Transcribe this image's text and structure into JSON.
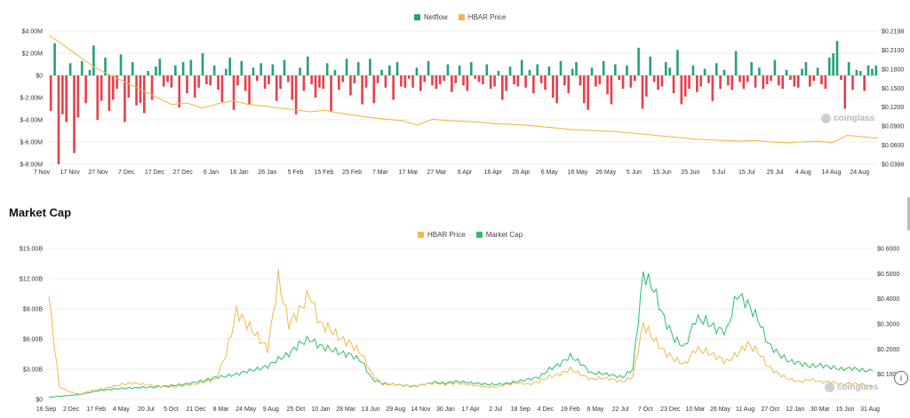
{
  "colors": {
    "netflow_pos": "#26a17b",
    "netflow_neg": "#e8404b",
    "hbar_price": "#f0b94a",
    "market_cap": "#2ebd6a",
    "grid": "#eeeeee"
  },
  "watermark": "coinglass",
  "info_button": "i",
  "chart_data": [
    {
      "type": "bar",
      "title": "",
      "legend": [
        "Netflow",
        "HBAR Price"
      ],
      "legend_position": "top-center",
      "y_left_ticks": [
        "$4.00M",
        "$2.00M",
        "$0",
        "$-2.00M",
        "$-4.00M",
        "$-6.00M",
        "$-8.00M"
      ],
      "y_left_range": [
        -8,
        4
      ],
      "y_right_ticks": [
        "$0.2198",
        "$0.2100",
        "$0.1800",
        "$0.1500",
        "$0.1200",
        "$0.0900",
        "$0.0600",
        "$0.0388"
      ],
      "x_ticks": [
        "7 Nov",
        "17 Nov",
        "27 Nov",
        "7 Dec",
        "17 Dec",
        "27 Dec",
        "6 Jan",
        "16 Jan",
        "26 Jan",
        "5 Feb",
        "15 Feb",
        "25 Feb",
        "7 Mar",
        "17 Mar",
        "27 Mar",
        "6 Apr",
        "16 Apr",
        "26 Apr",
        "6 May",
        "16 May",
        "26 May",
        "5 Jun",
        "15 Jun",
        "25 Jun",
        "5 Jul",
        "15 Jul",
        "25 Jul",
        "4 Aug",
        "14 Aug",
        "24 Aug"
      ],
      "series": [
        {
          "name": "Netflow",
          "type": "bar",
          "unit": "M",
          "values": [
            -3.2,
            2.9,
            -8.0,
            -3.5,
            -4.2,
            1.1,
            -7.0,
            -3.8,
            1.3,
            -2.5,
            0.5,
            2.7,
            -4.0,
            -2.3,
            1.6,
            -3.2,
            -2.2,
            -1.2,
            1.9,
            -4.2,
            -2.0,
            1.2,
            -2.7,
            -2.5,
            -3.4,
            0.4,
            -2.2,
            0.8,
            1.5,
            -1.0,
            -0.6,
            -1.1,
            0.9,
            -2.9,
            1.2,
            -1.6,
            1.4,
            -2.0,
            -1.1,
            2.0,
            -0.8,
            -0.9,
            0.9,
            -1.3,
            -2.4,
            0.6,
            1.6,
            -3.1,
            -0.9,
            1.3,
            -1.4,
            -2.6,
            0.7,
            -0.5,
            1.1,
            -1.2,
            -0.8,
            1.0,
            -2.3,
            -1.2,
            1.4,
            -0.6,
            -2.2,
            -3.5,
            0.7,
            -1.4,
            1.7,
            -0.8,
            -2.0,
            -1.1,
            -1.2,
            1.1,
            -3.3,
            0.5,
            -1.3,
            -0.6,
            1.5,
            -1.8,
            -0.7,
            1.2,
            -2.6,
            -1.1,
            1.5,
            -2.5,
            -0.7,
            0.5,
            -1.1,
            0.9,
            -2.2,
            1.2,
            -1.0,
            -1.1,
            -0.3,
            -1.1,
            0.7,
            -1.4,
            -0.6,
            1.3,
            -0.9,
            -1.2,
            -0.8,
            -0.5,
            1.0,
            -1.5,
            -0.7,
            0.9,
            -0.9,
            -1.4,
            1.2,
            -0.3,
            -0.6,
            -0.8,
            1.0,
            -1.2,
            -1.0,
            0.4,
            -2.2,
            -1.4,
            0.8,
            -0.8,
            -1.0,
            1.4,
            -1.1,
            0.5,
            -1.6,
            1.0,
            -0.7,
            -1.3,
            0.8,
            -2.0,
            -2.5,
            1.3,
            -0.9,
            -1.6,
            0.6,
            1.2,
            -0.9,
            -2.5,
            -3.1,
            0.7,
            -1.0,
            -0.8,
            1.3,
            -1.7,
            -2.6,
            1.0,
            -0.4,
            -1.2,
            0.9,
            -1.1,
            -0.5,
            2.5,
            -3.0,
            -1.9,
            1.7,
            -0.6,
            -1.3,
            -1.0,
            1.2,
            0.7,
            -1.6,
            2.3,
            -2.6,
            -1.9,
            -1.2,
            0.9,
            -1.5,
            -1.0,
            0.6,
            -0.7,
            -2.3,
            1.1,
            -1.2,
            0.5,
            -0.9,
            -1.3,
            2.2,
            -0.6,
            -1.2,
            -0.6,
            1.2,
            -1.1,
            0.7,
            -1.2,
            -0.8,
            -0.5,
            1.4,
            -0.9,
            -1.2,
            0.5,
            -0.4,
            -1.0,
            -1.1,
            0.6,
            1.2,
            -1.0,
            -0.5,
            0.7,
            -0.8,
            -1.2,
            1.6,
            2.0,
            3.1,
            -0.4,
            -3.0,
            1.2,
            -1.3,
            0.5,
            0.4,
            -1.4,
            0.9,
            0.6,
            0.9
          ]
        },
        {
          "name": "HBAR Price",
          "type": "line",
          "axis": "right",
          "values": [
            0.214,
            0.2,
            0.185,
            0.17,
            0.16,
            0.15,
            0.14,
            0.13,
            0.12,
            0.122,
            0.115,
            0.121,
            0.125,
            0.12,
            0.118,
            0.115,
            0.113,
            0.11,
            0.112,
            0.108,
            0.105,
            0.102,
            0.1,
            0.098,
            0.092,
            0.1,
            0.098,
            0.097,
            0.096,
            0.094,
            0.093,
            0.092,
            0.09,
            0.088,
            0.086,
            0.085,
            0.084,
            0.083,
            0.081,
            0.079,
            0.077,
            0.075,
            0.073,
            0.072,
            0.071,
            0.07,
            0.071,
            0.069,
            0.068,
            0.069,
            0.07,
            0.068,
            0.078,
            0.076,
            0.074
          ]
        }
      ]
    },
    {
      "type": "line",
      "title": "Market Cap",
      "legend": [
        "HBAR Price",
        "Market Cap"
      ],
      "legend_position": "top-center",
      "y_left_ticks": [
        "$15.00B",
        "$12.00B",
        "$9.00B",
        "$6.00B",
        "$3.00B",
        "$0"
      ],
      "y_left_range": [
        0,
        15
      ],
      "y_right_ticks": [
        "$0.6000",
        "$0.5000",
        "$0.4000",
        "$0.3000",
        "$0.2000",
        "$0.1000"
      ],
      "y_right_range": [
        0,
        0.6
      ],
      "x_ticks": [
        "16 Sep",
        "2 Dec",
        "17 Feb",
        "4 May",
        "20 Jul",
        "5 Oct",
        "21 Dec",
        "8 Mar",
        "24 May",
        "9 Aug",
        "25 Oct",
        "10 Jan",
        "28 Mar",
        "13 Jun",
        "29 Aug",
        "14 Nov",
        "30 Jan",
        "17 Apr",
        "2 Jul",
        "18 Sep",
        "4 Dec",
        "19 Feb",
        "6 May",
        "22 Jul",
        "7 Oct",
        "23 Dec",
        "10 Mar",
        "26 May",
        "11 Aug",
        "27 Oct",
        "12 Jan",
        "30 Mar",
        "15 Jun",
        "31 Aug"
      ],
      "series": [
        {
          "name": "HBAR Price",
          "axis": "right",
          "values": [
            0.41,
            0.05,
            0.03,
            0.02,
            0.035,
            0.04,
            0.05,
            0.06,
            0.065,
            0.06,
            0.055,
            0.05,
            0.05,
            0.055,
            0.06,
            0.07,
            0.08,
            0.18,
            0.35,
            0.3,
            0.25,
            0.2,
            0.48,
            0.3,
            0.35,
            0.42,
            0.3,
            0.28,
            0.24,
            0.22,
            0.18,
            0.1,
            0.06,
            0.06,
            0.055,
            0.05,
            0.06,
            0.065,
            0.06,
            0.065,
            0.06,
            0.055,
            0.05,
            0.05,
            0.06,
            0.065,
            0.06,
            0.07,
            0.09,
            0.1,
            0.12,
            0.1,
            0.08,
            0.085,
            0.08,
            0.07,
            0.09,
            0.3,
            0.24,
            0.19,
            0.16,
            0.14,
            0.2,
            0.19,
            0.17,
            0.15,
            0.18,
            0.22,
            0.19,
            0.13,
            0.1,
            0.08,
            0.07,
            0.08,
            0.07,
            0.07,
            0.06,
            0.065,
            0.06,
            0.05
          ]
        },
        {
          "name": "Market Cap",
          "axis": "left",
          "unit": "B",
          "values": [
            0.2,
            0.3,
            0.4,
            0.5,
            0.7,
            0.9,
            1.0,
            1.1,
            1.15,
            1.2,
            1.2,
            1.3,
            1.4,
            1.5,
            1.7,
            1.9,
            2.2,
            2.3,
            2.5,
            2.8,
            3.0,
            3.3,
            4.0,
            4.5,
            5.5,
            6.0,
            5.3,
            5.0,
            4.6,
            4.4,
            3.8,
            2.0,
            1.6,
            1.5,
            1.4,
            1.3,
            1.5,
            1.7,
            1.6,
            1.8,
            1.7,
            1.6,
            1.5,
            1.5,
            1.6,
            1.8,
            2.0,
            2.2,
            3.0,
            3.5,
            4.3,
            3.6,
            2.6,
            2.6,
            2.4,
            2.2,
            3.0,
            12.5,
            11.0,
            8.0,
            6.0,
            5.2,
            8.0,
            7.8,
            7.0,
            6.8,
            10.5,
            9.5,
            8.0,
            5.5,
            4.5,
            3.8,
            3.6,
            3.3,
            3.4,
            3.2,
            3.0,
            3.1,
            2.9,
            2.8
          ]
        }
      ]
    }
  ]
}
